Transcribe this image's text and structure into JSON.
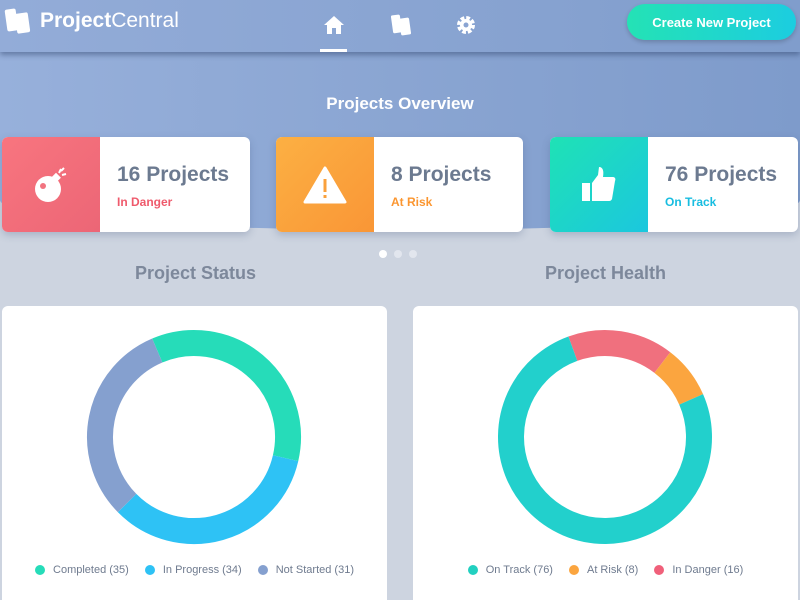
{
  "app": {
    "name_bold": "Project",
    "name_rest": "Central"
  },
  "nav": {
    "items": [
      {
        "icon": "home-icon",
        "active": true
      },
      {
        "icon": "cards-icon"
      },
      {
        "icon": "gear-icon"
      }
    ]
  },
  "create_button": "Create New Project",
  "overview": {
    "title": "Projects Overview",
    "cards": [
      {
        "value": "16 Projects",
        "label": "In Danger",
        "icon": "bomb-icon",
        "color": "#ef6b7a"
      },
      {
        "value": "8 Projects",
        "label": "At Risk",
        "icon": "warning-icon",
        "color": "#fb9b3b"
      },
      {
        "value": "76 Projects",
        "label": "On Track",
        "icon": "thumbs-up-icon",
        "color": "#1cc9d8"
      }
    ],
    "pager": {
      "pages": 3,
      "current": 1
    }
  },
  "chart_data": [
    {
      "type": "donut",
      "title": "Project Status",
      "start_angle_deg": -23,
      "series": [
        {
          "name": "Completed",
          "value": 35,
          "color": "#26dcb9"
        },
        {
          "name": "In Progress",
          "value": 34,
          "color": "#2ec2f5"
        },
        {
          "name": "Not Started",
          "value": 31,
          "color": "#85a0cf"
        }
      ],
      "legend": [
        "Completed (35)",
        "In Progress (34)",
        "Not Started (31)"
      ],
      "legend_position": "bottom"
    },
    {
      "type": "donut",
      "title": "Project Health",
      "start_angle_deg": -20,
      "series": [
        {
          "name": "In Danger",
          "value": 16,
          "color": "#f0707e"
        },
        {
          "name": "At Risk",
          "value": 8,
          "color": "#fba53f"
        },
        {
          "name": "On Track",
          "value": 76,
          "color": "#22d0cc"
        }
      ],
      "legend": [
        "On Track (76)",
        "At Risk (8)",
        "In Danger (16)"
      ],
      "legend_colors": [
        "#22d0c0",
        "#fba53f",
        "#f0607a"
      ],
      "legend_position": "bottom"
    }
  ]
}
